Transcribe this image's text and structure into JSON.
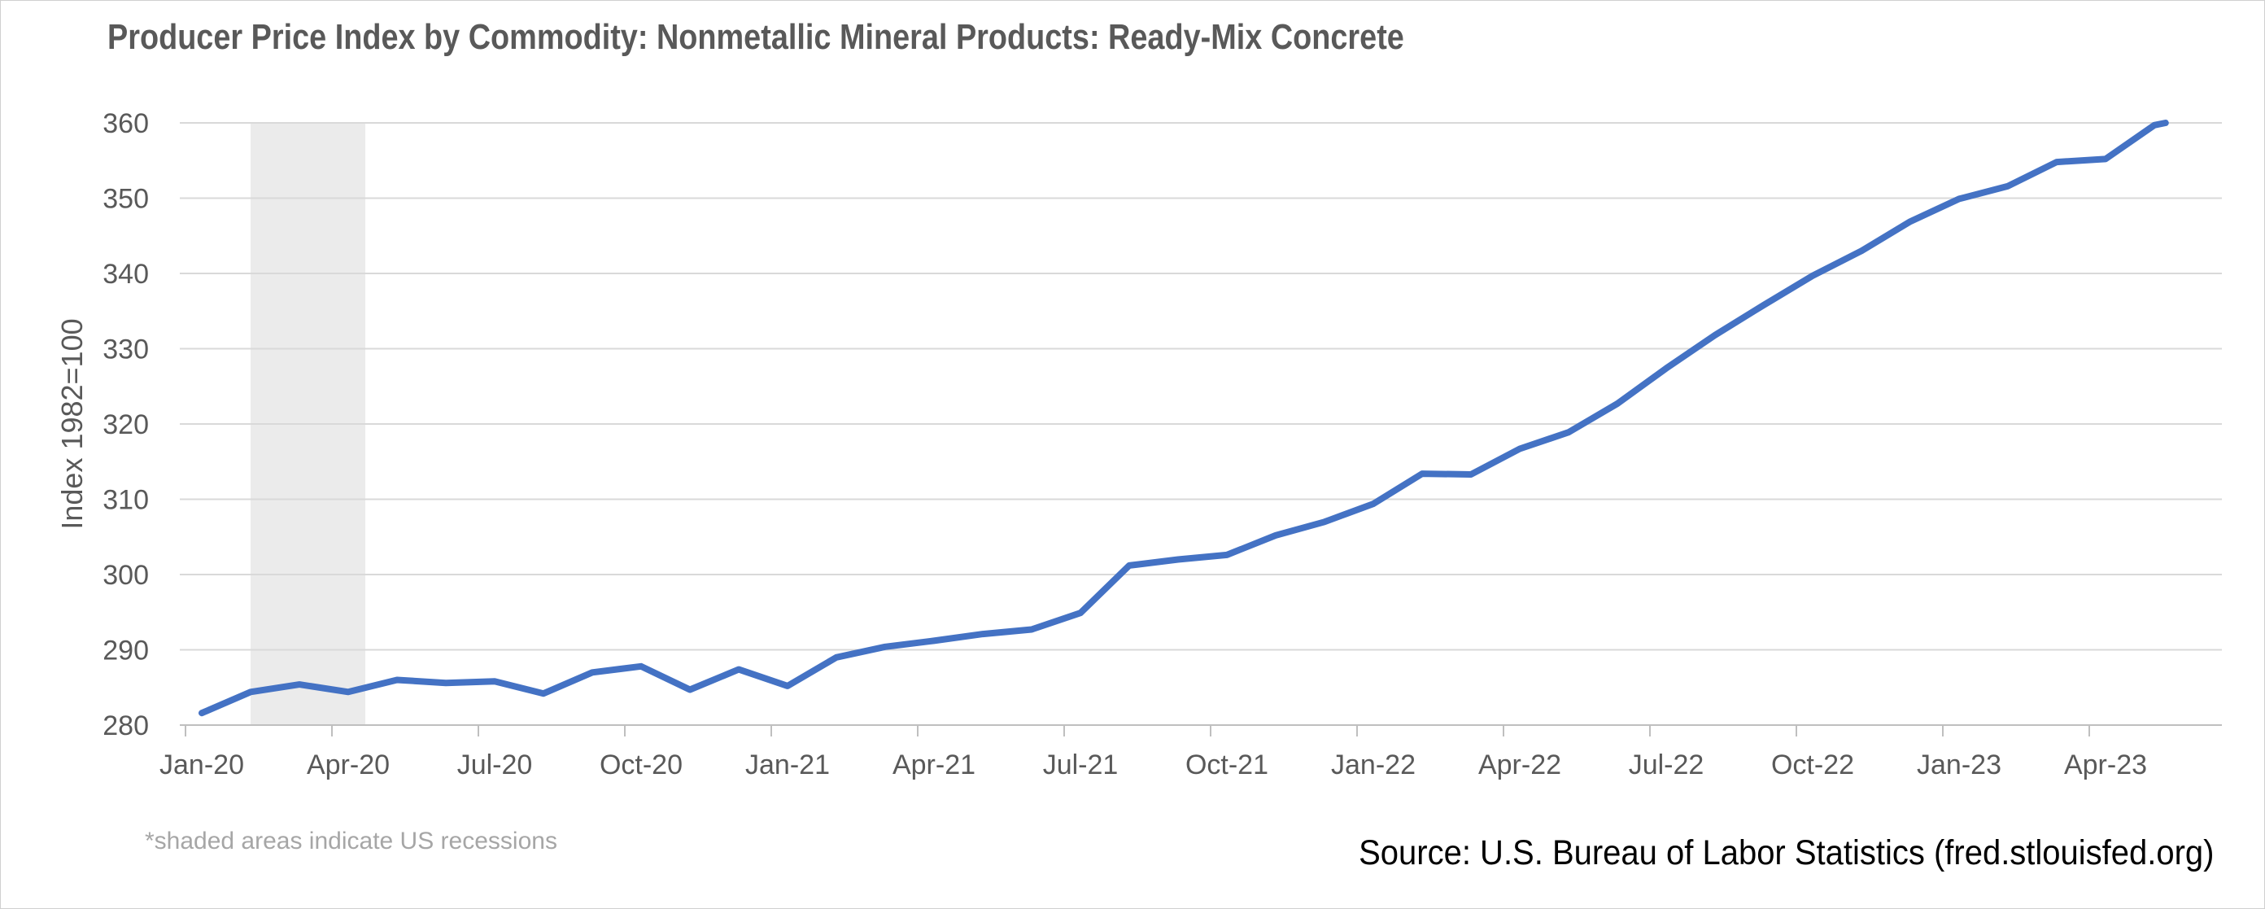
{
  "chart_data": {
    "type": "line",
    "title": "Producer Price Index by Commodity: Nonmetallic Mineral Products: Ready-Mix Concrete",
    "xlabel": "",
    "ylabel": "Index 1982=100",
    "ylim": [
      280,
      360
    ],
    "yticks": [
      280,
      290,
      300,
      310,
      320,
      330,
      340,
      350,
      360
    ],
    "xticks": [
      "Jan-20",
      "Apr-20",
      "Jul-20",
      "Oct-20",
      "Jan-21",
      "Apr-21",
      "Jul-21",
      "Oct-21",
      "Jan-22",
      "Apr-22",
      "Jul-22",
      "Oct-22",
      "Jan-23",
      "Apr-23"
    ],
    "grid": "horizontal",
    "legend": "none",
    "line_color": "#4472C4",
    "recession_shading": {
      "start": "2020-02",
      "end": "2020-04",
      "color": "#EBEBEB"
    },
    "series": [
      {
        "x": [
          "2020-01",
          "2020-02",
          "2020-03",
          "2020-04",
          "2020-05",
          "2020-06",
          "2020-07",
          "2020-08",
          "2020-09",
          "2020-10",
          "2020-11",
          "2020-12",
          "2021-01",
          "2021-02",
          "2021-03",
          "2021-04",
          "2021-05",
          "2021-06",
          "2021-07",
          "2021-08",
          "2021-09",
          "2021-10",
          "2021-11",
          "2021-12",
          "2022-01",
          "2022-02",
          "2022-03",
          "2022-04",
          "2022-05",
          "2022-06",
          "2022-07",
          "2022-08",
          "2022-09",
          "2022-10",
          "2022-11",
          "2022-12",
          "2023-01",
          "2023-02",
          "2023-03",
          "2023-04",
          "2023-05",
          "2023-06"
        ],
        "values": [
          281.6,
          284.4,
          285.4,
          284.4,
          286.0,
          285.6,
          285.8,
          284.2,
          287.0,
          287.8,
          284.7,
          287.4,
          285.2,
          289.0,
          290.4,
          291.2,
          292.1,
          292.7,
          294.9,
          301.2,
          302.0,
          302.6,
          305.2,
          307.0,
          309.4,
          313.4,
          313.3,
          316.7,
          318.9,
          322.7,
          327.4,
          331.8,
          335.8,
          339.7,
          343.0,
          346.9,
          349.9,
          351.6,
          354.8,
          355.2,
          359.7,
          361.0
        ]
      }
    ]
  },
  "notes": {
    "recession": "*shaded areas indicate US recessions",
    "source": "Source: U.S. Bureau of Labor Statistics (fred.stlouisfed.org)"
  }
}
